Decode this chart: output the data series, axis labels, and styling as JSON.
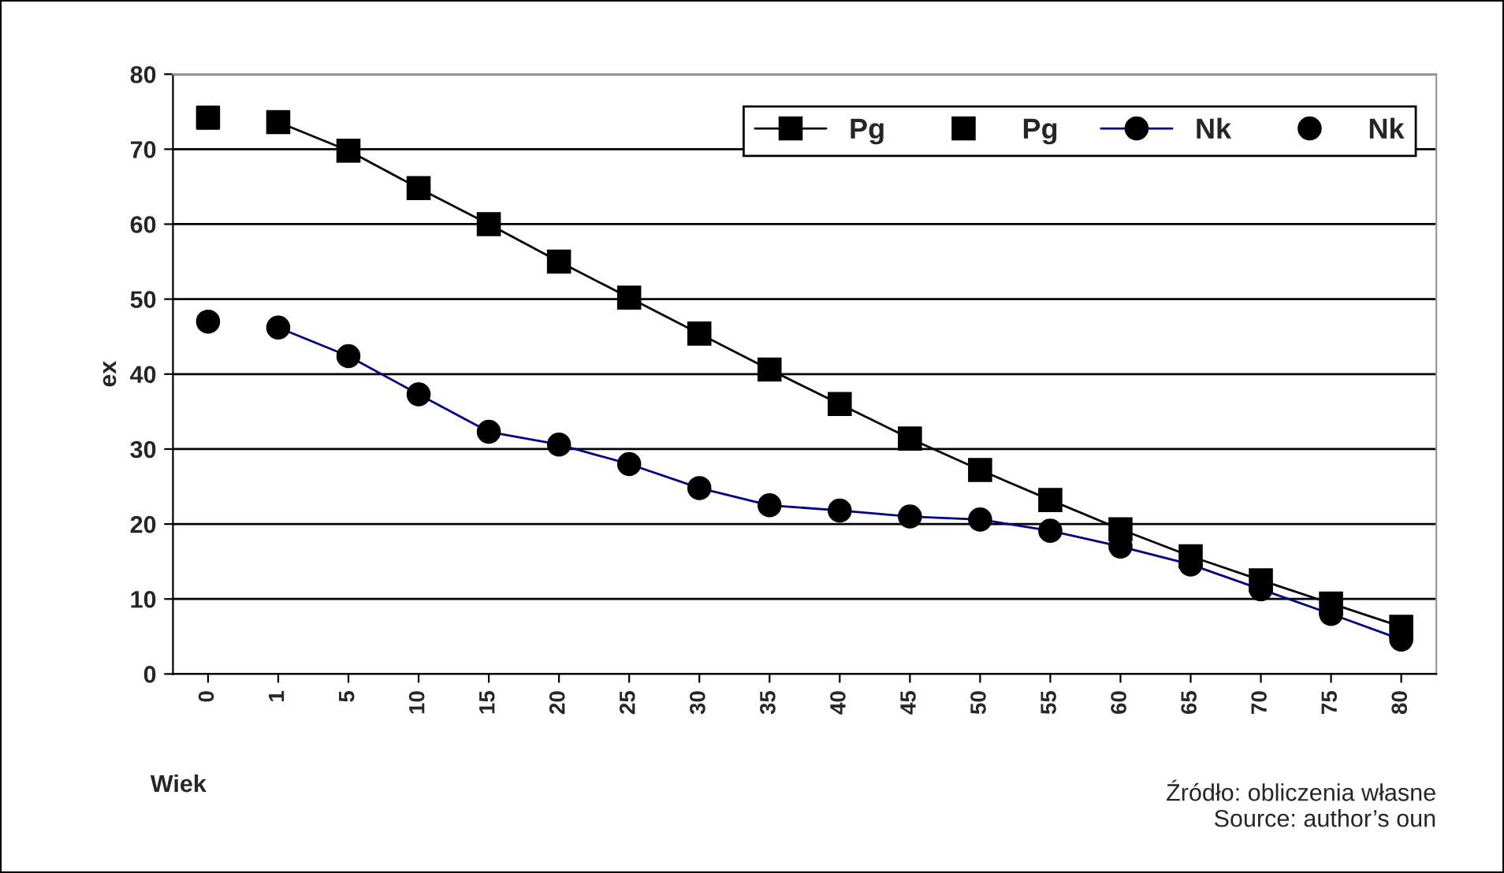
{
  "chart_data": {
    "type": "line",
    "xlabel": "Wiek",
    "ylabel": "ex",
    "categories": [
      "0",
      "1",
      "5",
      "10",
      "15",
      "20",
      "25",
      "30",
      "35",
      "40",
      "45",
      "50",
      "55",
      "60",
      "65",
      "70",
      "75",
      "80"
    ],
    "series": [
      {
        "name": "Pg",
        "color": "#000000",
        "marker": "square",
        "line_style": "solid",
        "values": [
          null,
          73.6,
          69.8,
          64.8,
          60,
          55,
          50.2,
          45.4,
          40.6,
          36,
          31.4,
          27.2,
          23.2,
          19.3,
          15.7,
          12.5,
          9.4,
          6.3
        ]
      },
      {
        "name": "Pg",
        "type": "scatter",
        "color": "#000000",
        "marker": "square",
        "values": [
          74.2,
          null,
          null,
          null,
          null,
          null,
          null,
          null,
          null,
          null,
          null,
          null,
          null,
          null,
          null,
          null,
          null,
          null
        ]
      },
      {
        "name": "Nk",
        "color": "#000080",
        "marker": "circle",
        "line_style": "solid",
        "values": [
          null,
          46.2,
          42.4,
          37.3,
          32.3,
          30.6,
          28,
          24.8,
          22.5,
          21.8,
          21,
          20.6,
          19.1,
          17,
          14.6,
          11.3,
          8,
          4.6
        ]
      },
      {
        "name": "Nk",
        "type": "scatter",
        "color": "#000000",
        "marker": "circle",
        "values": [
          47,
          null,
          null,
          null,
          null,
          null,
          null,
          null,
          null,
          null,
          null,
          null,
          null,
          null,
          null,
          null,
          null,
          null
        ]
      }
    ],
    "ylim": [
      0,
      80
    ],
    "yticks": [
      0,
      10,
      20,
      30,
      40,
      50,
      60,
      70,
      80
    ],
    "grid": "y",
    "legend": "top right",
    "annotations": [
      "Źródło: obliczenia własne\nSource: author’s oun"
    ]
  }
}
